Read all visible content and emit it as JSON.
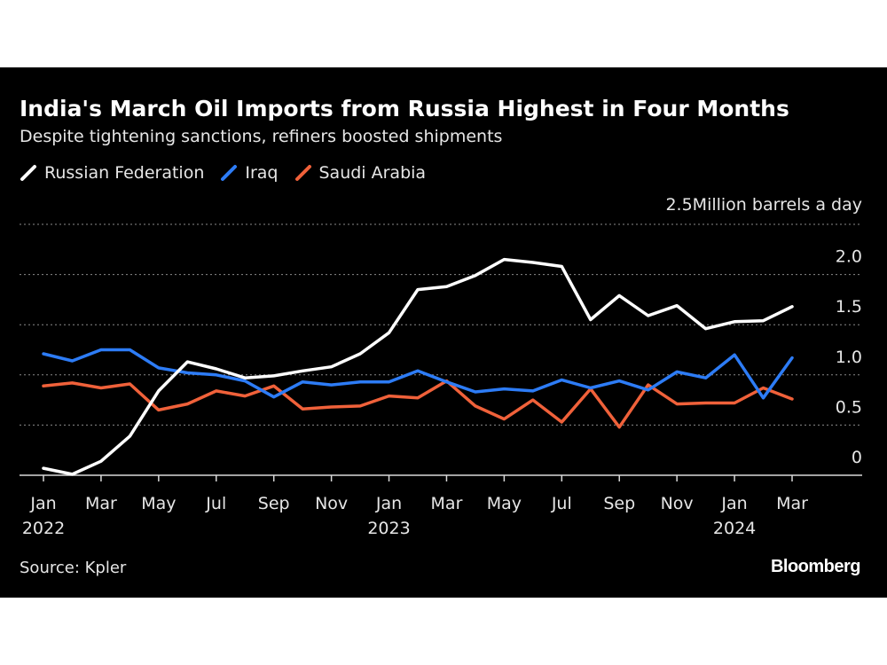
{
  "chart_data": {
    "type": "line",
    "title": "India's March Oil Imports from Russia Highest in Four Months",
    "subtitle": "Despite tightening sanctions, refiners boosted shipments",
    "ylabel": "Million barrels a day",
    "ylim": [
      0,
      2.5
    ],
    "y_ticks": [
      {
        "value": 0,
        "label": "0"
      },
      {
        "value": 0.5,
        "label": "0.5"
      },
      {
        "value": 1.0,
        "label": "1.0"
      },
      {
        "value": 1.5,
        "label": "1.5"
      },
      {
        "value": 2.0,
        "label": "2.0"
      },
      {
        "value": 2.5,
        "label": "2.5"
      }
    ],
    "x_ticks": [
      {
        "index": 0,
        "label": "Jan",
        "year": "2022"
      },
      {
        "index": 2,
        "label": "Mar"
      },
      {
        "index": 4,
        "label": "May"
      },
      {
        "index": 6,
        "label": "Jul"
      },
      {
        "index": 8,
        "label": "Sep"
      },
      {
        "index": 10,
        "label": "Nov"
      },
      {
        "index": 12,
        "label": "Jan",
        "year": "2023"
      },
      {
        "index": 14,
        "label": "Mar"
      },
      {
        "index": 16,
        "label": "May"
      },
      {
        "index": 18,
        "label": "Jul"
      },
      {
        "index": 20,
        "label": "Sep"
      },
      {
        "index": 22,
        "label": "Nov"
      },
      {
        "index": 24,
        "label": "Jan",
        "year": "2024"
      },
      {
        "index": 26,
        "label": "Mar"
      }
    ],
    "x": [
      "2022-01",
      "2022-02",
      "2022-03",
      "2022-04",
      "2022-05",
      "2022-06",
      "2022-07",
      "2022-08",
      "2022-09",
      "2022-10",
      "2022-11",
      "2022-12",
      "2023-01",
      "2023-02",
      "2023-03",
      "2023-04",
      "2023-05",
      "2023-06",
      "2023-07",
      "2023-08",
      "2023-09",
      "2023-10",
      "2023-11",
      "2023-12",
      "2024-01",
      "2024-02",
      "2024-03"
    ],
    "series": [
      {
        "name": "Russian Federation",
        "color": "#ffffff",
        "values": [
          0.07,
          0.01,
          0.14,
          0.39,
          0.84,
          1.13,
          1.06,
          0.97,
          0.99,
          1.04,
          1.08,
          1.21,
          1.42,
          1.85,
          1.88,
          1.99,
          2.15,
          2.12,
          2.08,
          1.55,
          1.79,
          1.59,
          1.69,
          1.46,
          1.53,
          1.54,
          1.68
        ]
      },
      {
        "name": "Iraq",
        "color": "#2d7cf6",
        "values": [
          1.21,
          1.14,
          1.25,
          1.25,
          1.07,
          1.02,
          1.0,
          0.94,
          0.78,
          0.93,
          0.9,
          0.93,
          0.93,
          1.04,
          0.93,
          0.83,
          0.86,
          0.84,
          0.95,
          0.87,
          0.94,
          0.85,
          1.03,
          0.97,
          1.2,
          0.77,
          1.17
        ]
      },
      {
        "name": "Saudi Arabia",
        "color": "#f0613a",
        "values": [
          0.89,
          0.92,
          0.87,
          0.91,
          0.65,
          0.71,
          0.84,
          0.79,
          0.89,
          0.66,
          0.68,
          0.69,
          0.79,
          0.77,
          0.94,
          0.69,
          0.56,
          0.75,
          0.53,
          0.86,
          0.48,
          0.9,
          0.71,
          0.72,
          0.72,
          0.87,
          0.76
        ]
      }
    ],
    "legend_position": "top-left",
    "grid": true
  },
  "source_text": "Source: Kpler",
  "brand_text": "Bloomberg"
}
